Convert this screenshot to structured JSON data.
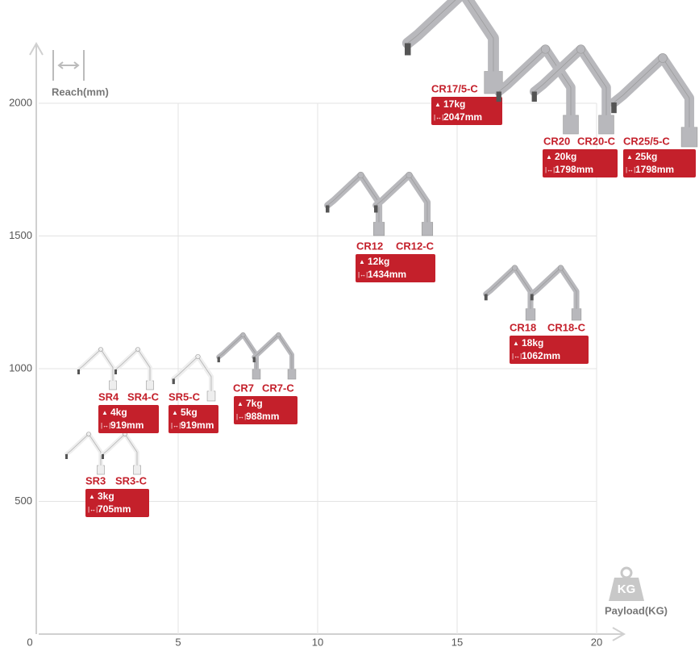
{
  "chart_data": {
    "type": "scatter",
    "y_label": "Reach(mm)",
    "x_label": "Payload(KG)",
    "xlim": [
      0,
      20
    ],
    "ylim": [
      0,
      2000
    ],
    "xticks": [
      0,
      5,
      10,
      15,
      20
    ],
    "yticks": [
      500,
      1000,
      1500,
      2000
    ],
    "grid": true,
    "groups": [
      {
        "models": [
          "SR3",
          "SR3-C"
        ],
        "payload": 3,
        "payload_label": "3kg",
        "reach": 705,
        "reach_label": "705mm"
      },
      {
        "models": [
          "SR4",
          "SR4-C"
        ],
        "payload": 4,
        "payload_label": "4kg",
        "reach": 919,
        "reach_label": "919mm"
      },
      {
        "models": [
          "SR5-C"
        ],
        "payload": 5,
        "payload_label": "5kg",
        "reach": 919,
        "reach_label": "919mm"
      },
      {
        "models": [
          "CR7",
          "CR7-C"
        ],
        "payload": 7,
        "payload_label": "7kg",
        "reach": 988,
        "reach_label": "988mm"
      },
      {
        "models": [
          "CR12",
          "CR12-C"
        ],
        "payload": 12,
        "payload_label": "12kg",
        "reach": 1434,
        "reach_label": "1434mm"
      },
      {
        "models": [
          "CR18",
          "CR18-C"
        ],
        "payload": 18,
        "payload_label": "18kg",
        "reach": 1062,
        "reach_label": "1062mm"
      },
      {
        "models": [
          "CR17/5-C"
        ],
        "payload": 17,
        "payload_label": "17kg",
        "reach": 2047,
        "reach_label": "2047mm"
      },
      {
        "models": [
          "CR20",
          "CR20-C"
        ],
        "payload": 20,
        "payload_label": "20kg",
        "reach": 1798,
        "reach_label": "1798mm"
      },
      {
        "models": [
          "CR25/5-C"
        ],
        "payload": 25,
        "payload_label": "25kg",
        "reach": 1798,
        "reach_label": "1798mm"
      }
    ]
  }
}
